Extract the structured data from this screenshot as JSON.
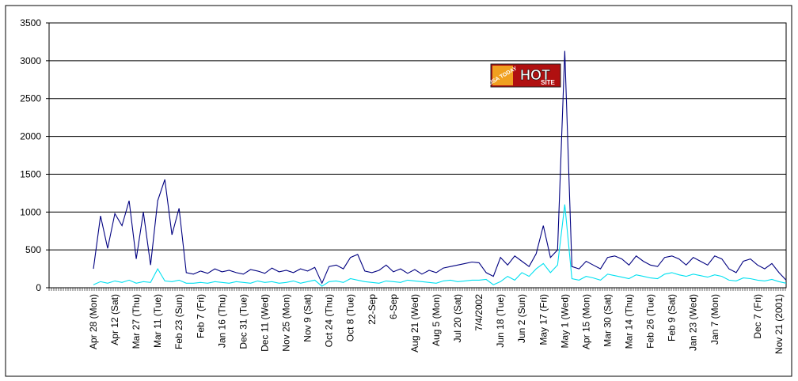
{
  "chart_data": {
    "type": "line",
    "categories": [
      "Apr 28 (Mon)",
      null,
      null,
      "Apr 12 (Sat)",
      null,
      null,
      "Mar 27 (Thu)",
      null,
      null,
      "Mar 11 (Tue)",
      null,
      null,
      "Feb 23 (Sun)",
      null,
      null,
      "Feb 7 (Fri)",
      null,
      null,
      "Jan 16 (Thu)",
      null,
      null,
      "Dec 31 (Tue)",
      null,
      null,
      "Dec 11 (Wed)",
      null,
      null,
      "Nov 25 (Mon)",
      null,
      null,
      "Nov 9 (Sat)",
      null,
      null,
      "Oct 24 (Thu)",
      null,
      null,
      "Oct 8 (Tue)",
      null,
      null,
      "22-Sep",
      null,
      null,
      "6-Sep",
      null,
      null,
      "Aug 21 (Wed)",
      null,
      null,
      "Aug 5 (Mon)",
      null,
      null,
      "Jul 20 (Sat)",
      null,
      null,
      "7/4/2002",
      null,
      null,
      "Jun 18 (Tue)",
      null,
      null,
      "Jun 2 (Sun)",
      null,
      null,
      "May 17 (Fri)",
      null,
      null,
      "May 1 (Wed)",
      null,
      null,
      "Apr 15 (Mon)",
      null,
      null,
      "Mar 30 (Sat)",
      null,
      null,
      "Mar 14 (Thu)",
      null,
      null,
      "Feb 26 (Tue)",
      null,
      null,
      "Feb 9 (Sat)",
      null,
      null,
      "Jan 23 (Wed)",
      null,
      null,
      "Jan 7 (Mon)",
      null,
      null,
      null,
      null,
      null,
      "Dec  7 (Fri)",
      null,
      null,
      "Nov 21 (2001)",
      null
    ],
    "series": [
      {
        "color": "#000080",
        "values": [
          250,
          950,
          520,
          980,
          820,
          1150,
          380,
          1000,
          300,
          1150,
          1430,
          700,
          1050,
          200,
          180,
          220,
          190,
          250,
          210,
          230,
          200,
          180,
          240,
          220,
          190,
          260,
          210,
          230,
          200,
          250,
          220,
          270,
          60,
          280,
          300,
          250,
          400,
          440,
          220,
          200,
          230,
          300,
          210,
          250,
          190,
          240,
          180,
          230,
          200,
          260,
          280,
          300,
          320,
          340,
          330,
          200,
          150,
          400,
          300,
          420,
          350,
          280,
          450,
          820,
          400,
          500,
          3130,
          280,
          250,
          350,
          300,
          250,
          400,
          420,
          380,
          300,
          420,
          350,
          300,
          280,
          400,
          420,
          380,
          300,
          400,
          350,
          300,
          420,
          380,
          250,
          200,
          350,
          380,
          300,
          250,
          320,
          200,
          100
        ]
      },
      {
        "color": "#00e0f0",
        "values": [
          40,
          80,
          60,
          90,
          70,
          100,
          60,
          80,
          70,
          250,
          90,
          80,
          100,
          60,
          60,
          70,
          60,
          80,
          70,
          60,
          80,
          70,
          60,
          90,
          70,
          80,
          60,
          70,
          90,
          60,
          80,
          100,
          20,
          80,
          90,
          70,
          120,
          100,
          80,
          70,
          60,
          90,
          80,
          70,
          100,
          90,
          80,
          70,
          60,
          90,
          100,
          80,
          90,
          100,
          100,
          110,
          40,
          80,
          150,
          100,
          200,
          150,
          250,
          320,
          200,
          300,
          1100,
          120,
          100,
          150,
          130,
          100,
          180,
          160,
          140,
          120,
          170,
          150,
          130,
          120,
          180,
          200,
          170,
          150,
          180,
          160,
          140,
          170,
          150,
          100,
          90,
          130,
          120,
          100,
          90,
          110,
          80,
          60
        ]
      }
    ],
    "ylim": [
      0,
      3500
    ],
    "yticks": [
      0,
      500,
      1000,
      1500,
      2000,
      2500,
      3000,
      3500
    ],
    "grid": true
  },
  "badge": {
    "brand": "USA TODAY",
    "hot": "HOT",
    "site": "SITE"
  }
}
